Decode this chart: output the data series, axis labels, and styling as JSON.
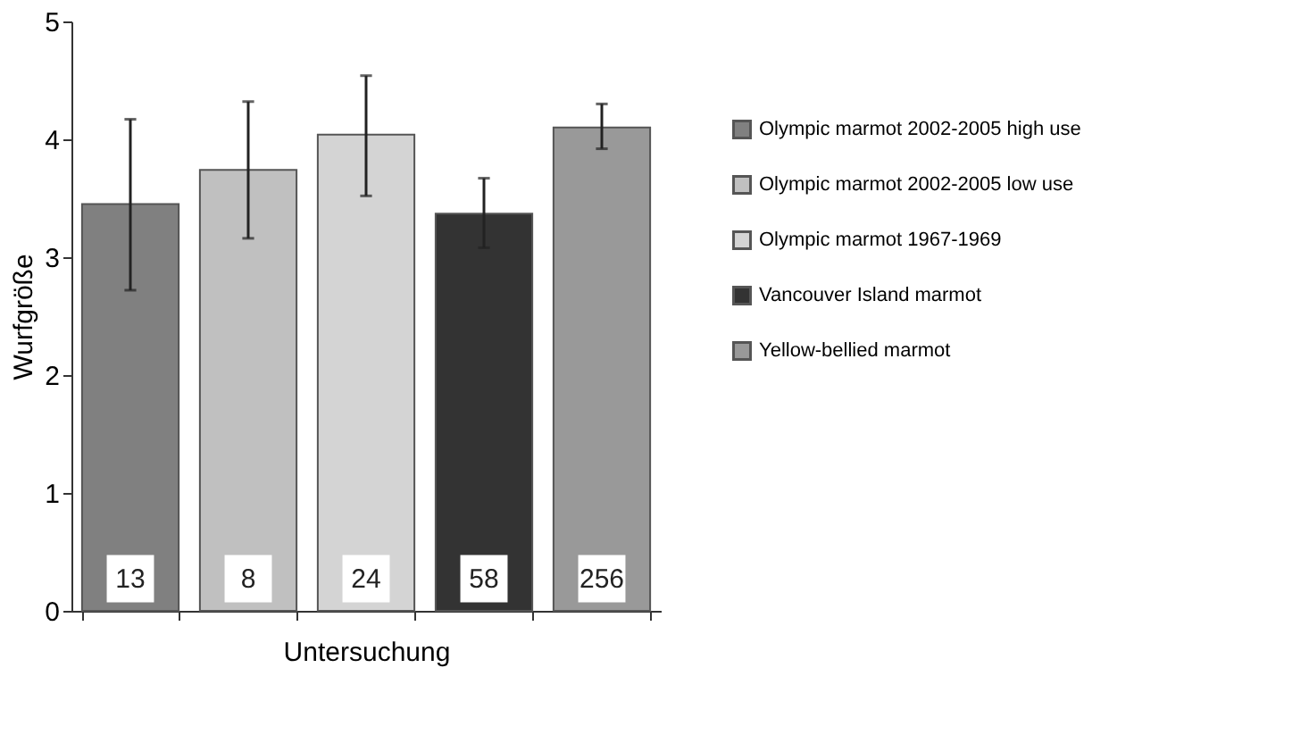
{
  "chart_data": {
    "type": "bar",
    "xlabel": "Untersuchung",
    "ylabel": "Wurfgröße",
    "categories": [
      null,
      null,
      null,
      null,
      null
    ],
    "series": [
      {
        "name": "Olympic marmot 2002-2005 high use",
        "color": "#808080",
        "values": [
          3.45,
          null,
          null,
          null,
          null
        ],
        "errors": [
          [
            2.72,
            4.17
          ],
          null,
          null,
          null,
          null
        ]
      },
      {
        "name": "Olympic marmot 2002-2005 low use",
        "color": "#c0c0c0",
        "values": [
          null,
          3.74,
          null,
          null,
          null
        ],
        "errors": [
          null,
          [
            3.16,
            4.32
          ],
          null,
          null,
          null
        ]
      },
      {
        "name": "Olympic marmot 1967-1969",
        "color": "#d4d4d4",
        "values": [
          null,
          null,
          4.04,
          null,
          null
        ],
        "errors": [
          null,
          null,
          [
            3.52,
            4.54
          ],
          null,
          null
        ]
      },
      {
        "name": "Vancouver Island marmot",
        "color": "#333333",
        "values": [
          null,
          null,
          null,
          3.37,
          null
        ],
        "errors": [
          null,
          null,
          null,
          [
            3.08,
            3.67
          ],
          null
        ]
      },
      {
        "name": "Yellow-bellied marmot",
        "color": "#999999",
        "values": [
          null,
          null,
          null,
          null,
          4.1
        ],
        "errors": [
          null,
          null,
          null,
          null,
          [
            3.92,
            4.3
          ]
        ]
      }
    ],
    "annotations": [
      "13",
      "8",
      "24",
      "58",
      "256"
    ],
    "ylim": [
      0,
      5
    ],
    "yticks": [
      0,
      1,
      2,
      3,
      4,
      5
    ],
    "grid": false,
    "legend": "right",
    "tick_labels": "y"
  }
}
